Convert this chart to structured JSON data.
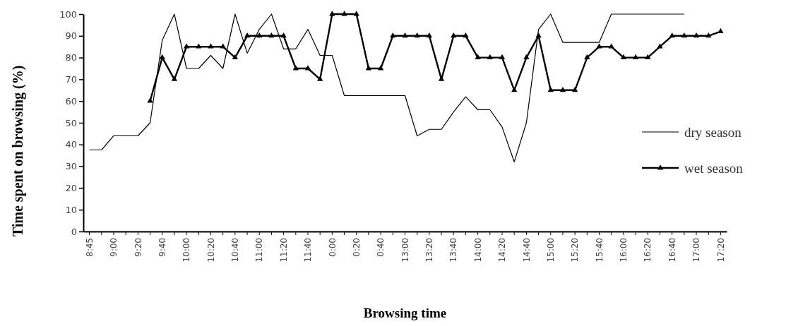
{
  "chart_data": {
    "type": "line",
    "xlabel": "Browsing time",
    "ylabel": "Time spent  on browsing (%)",
    "categories": [
      "8:45",
      null,
      "9:00",
      null,
      "9:20",
      null,
      "9:40",
      null,
      "10:00",
      null,
      "10:20",
      null,
      "10:40",
      null,
      "11:00",
      null,
      "11:20",
      null,
      "11:40",
      null,
      "0:00",
      null,
      "0:20",
      null,
      "0:40",
      null,
      "13:00",
      null,
      "13:20",
      null,
      "13:40",
      null,
      "14:00",
      null,
      "14:20",
      null,
      "14:40",
      null,
      "15:00",
      null,
      "15:20",
      null,
      "15:40",
      null,
      "16:00",
      null,
      "16:20",
      null,
      "16:40",
      null,
      "17:00",
      null,
      "17:20"
    ],
    "series": [
      {
        "name": "dry season",
        "color": "#000000",
        "marker": "none",
        "values": [
          37.5,
          37.5,
          44,
          44,
          44,
          50,
          88,
          100,
          75,
          75,
          81,
          75,
          100,
          82,
          93,
          100,
          84,
          84,
          93,
          81,
          81,
          62.5,
          62.5,
          62.5,
          62.5,
          62.5,
          62.5,
          44,
          47,
          47,
          55,
          62,
          56,
          56,
          48,
          32,
          50,
          93,
          100,
          87,
          87,
          87,
          87,
          100,
          100,
          100,
          100,
          100,
          100,
          100,
          null,
          null,
          null
        ]
      },
      {
        "name": "wet season",
        "color": "#000000",
        "marker": "triangle",
        "values": [
          null,
          null,
          null,
          null,
          null,
          60,
          80,
          70,
          85,
          85,
          85,
          85,
          80,
          90,
          90,
          90,
          90,
          75,
          75,
          70,
          100,
          100,
          100,
          75,
          75,
          90,
          90,
          90,
          90,
          70,
          90,
          90,
          80,
          80,
          80,
          65,
          80,
          90,
          65,
          65,
          65,
          80,
          85,
          85,
          80,
          80,
          80,
          85,
          90,
          90,
          90,
          90,
          92
        ]
      }
    ],
    "ylim": [
      0,
      100
    ],
    "yticks": [
      0,
      10,
      20,
      30,
      40,
      50,
      60,
      70,
      80,
      90,
      100
    ],
    "grid": false,
    "legend": "right"
  }
}
